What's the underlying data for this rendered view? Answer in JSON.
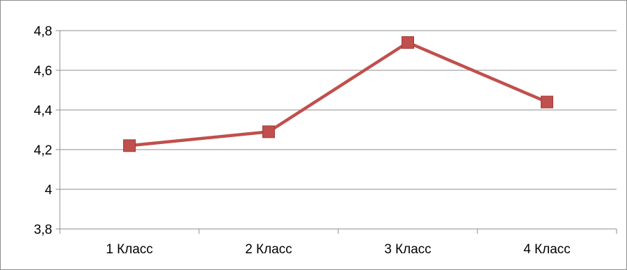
{
  "chart_data": {
    "type": "line",
    "categories": [
      "1 Класс",
      "2 Класс",
      "3 Класс",
      "4 Класс"
    ],
    "series": [
      {
        "values": [
          4.22,
          4.29,
          4.74,
          4.44
        ],
        "color": "#C0504D"
      }
    ],
    "ylim": [
      3.8,
      4.8
    ],
    "yticks": [
      "3,8",
      "4",
      "4,2",
      "4,4",
      "4,6",
      "4,8"
    ],
    "grid": true,
    "legend": "none",
    "marker": "square"
  }
}
